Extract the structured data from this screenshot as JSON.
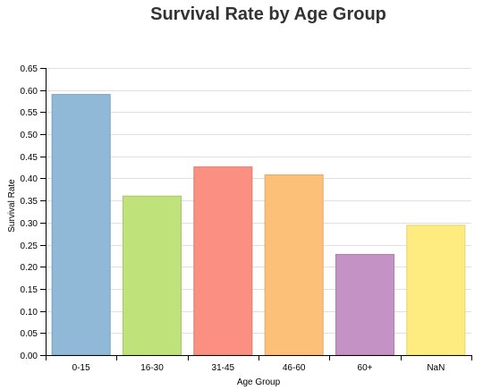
{
  "chart_data": {
    "type": "bar",
    "title": "Survival Rate by Age Group",
    "xlabel": "Age Group",
    "ylabel": "Survival Rate",
    "ylim": [
      0,
      0.65
    ],
    "yticks": [
      "0.00",
      "0.05",
      "0.10",
      "0.15",
      "0.20",
      "0.25",
      "0.30",
      "0.35",
      "0.40",
      "0.45",
      "0.50",
      "0.55",
      "0.60",
      "0.65"
    ],
    "categories": [
      "0-15",
      "16-30",
      "31-45",
      "46-60",
      "60+",
      "NaN"
    ],
    "values": [
      0.59,
      0.36,
      0.426,
      0.408,
      0.228,
      0.294
    ],
    "colors": [
      "#8fb9d6",
      "#bfe27a",
      "#fb9082",
      "#fdc078",
      "#c592c6",
      "#ffec80"
    ],
    "stroke_colors": [
      "#7aa3c0",
      "#a8c866",
      "#e07a6c",
      "#e4a964",
      "#ac7cae",
      "#e6d36a"
    ],
    "grid": true,
    "legend": "none"
  }
}
